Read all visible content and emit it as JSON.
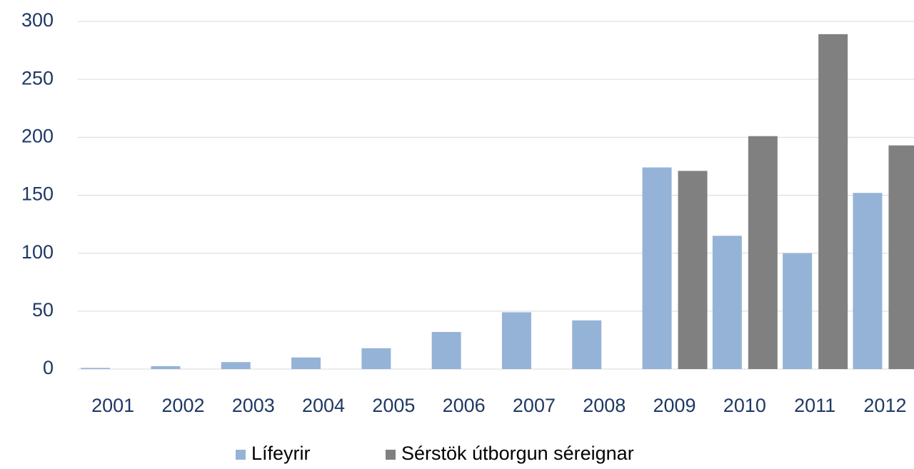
{
  "chart_data": {
    "type": "bar",
    "categories": [
      "2001",
      "2002",
      "2003",
      "2004",
      "2005",
      "2006",
      "2007",
      "2008",
      "2009",
      "2010",
      "2011",
      "2012"
    ],
    "series": [
      {
        "name": "Lífeyrir",
        "color": "#95b3d7",
        "values": [
          1,
          2.5,
          6,
          10,
          18,
          32,
          49,
          42,
          174,
          115,
          100,
          152
        ]
      },
      {
        "name": "Sérstök útborgun séreignar",
        "color": "#808080",
        "values": [
          null,
          null,
          null,
          null,
          null,
          null,
          null,
          null,
          171,
          201,
          289,
          193
        ]
      }
    ],
    "ylim": [
      0,
      300
    ],
    "yticks": [
      0,
      50,
      100,
      150,
      200,
      250,
      300
    ],
    "grid": true,
    "legend": "bottom"
  }
}
